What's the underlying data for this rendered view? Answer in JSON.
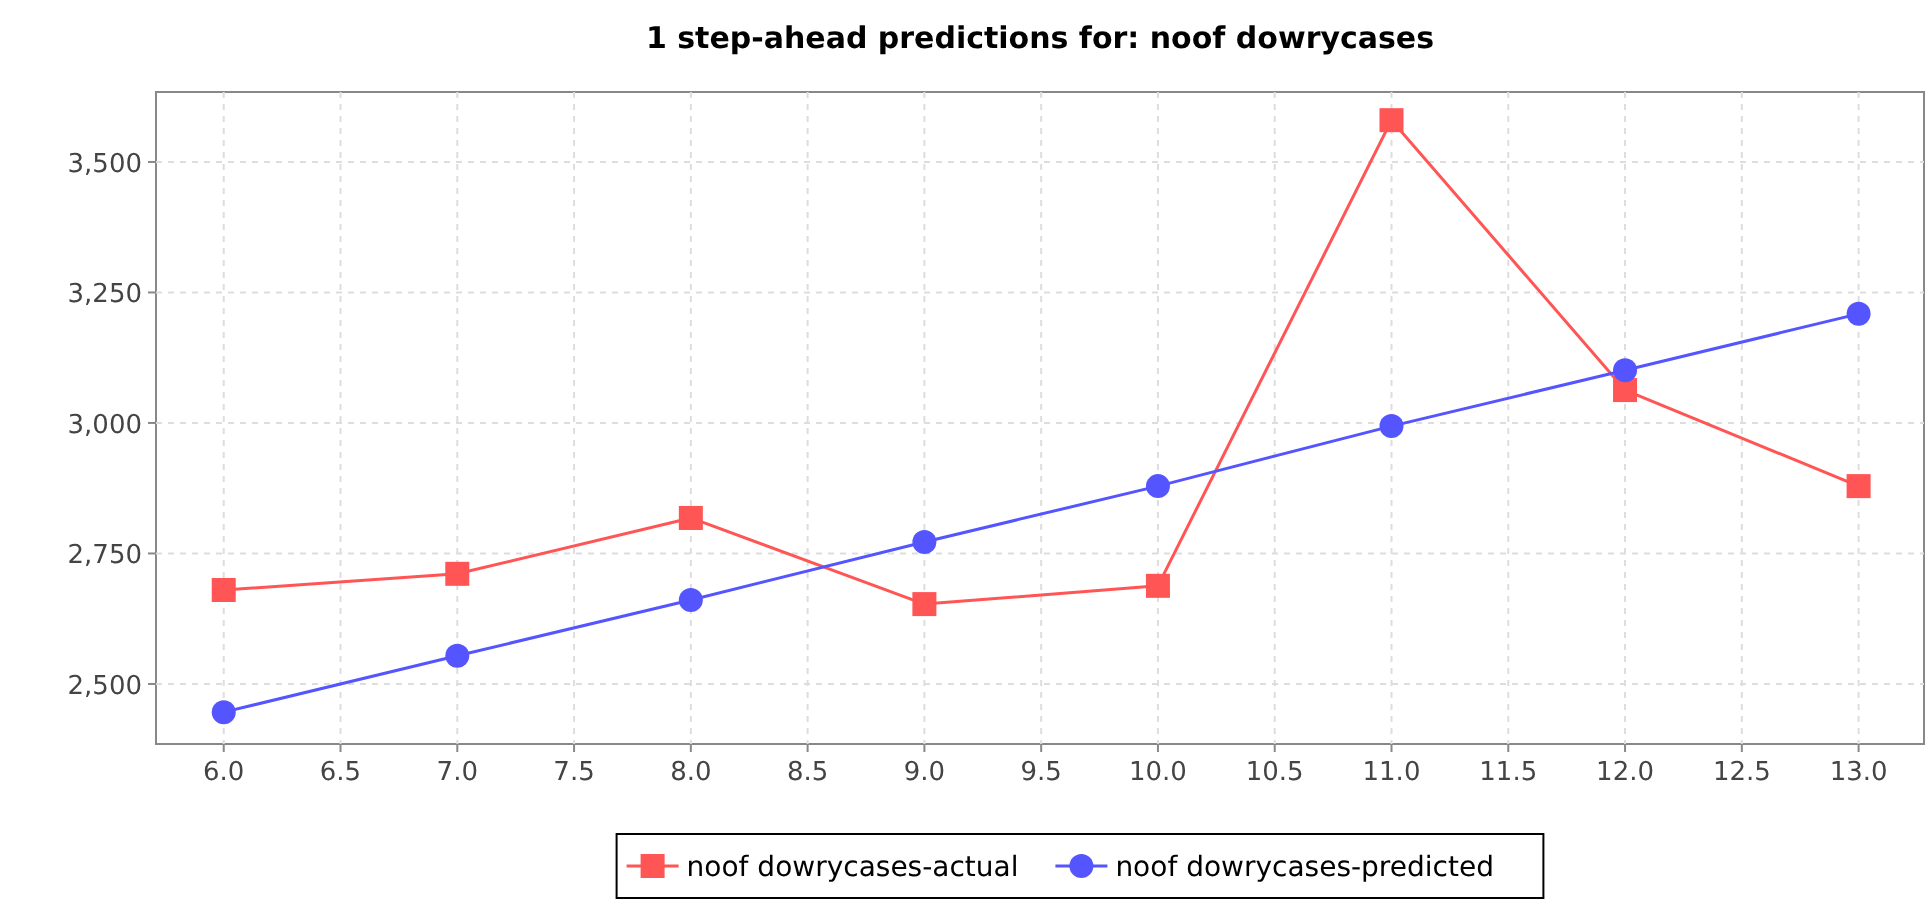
{
  "chart_data": {
    "type": "line",
    "title": "1 step-ahead predictions for: noof dowrycases",
    "x": [
      6,
      7,
      8,
      9,
      10,
      11,
      12,
      13
    ],
    "series": [
      {
        "name": "noof dowrycases-actual",
        "color": "#ff5555",
        "marker": "square",
        "values": [
          2680,
          2711,
          2818,
          2653,
          2688,
          3580,
          3063,
          2879
        ]
      },
      {
        "name": "noof dowrycases-predicted",
        "color": "#5555ff",
        "marker": "circle",
        "values": [
          2446,
          2554,
          2661,
          2772,
          2879,
          2994,
          3101,
          3209
        ]
      }
    ],
    "xlim": [
      5.71,
      13.28
    ],
    "ylim": [
      2385,
      3634
    ],
    "xticks": [
      {
        "value": 6,
        "label": "6.0"
      },
      {
        "value": 6.5,
        "label": "6.5"
      },
      {
        "value": 7,
        "label": "7.0"
      },
      {
        "value": 7.5,
        "label": "7.5"
      },
      {
        "value": 8,
        "label": "8.0"
      },
      {
        "value": 8.5,
        "label": "8.5"
      },
      {
        "value": 9,
        "label": "9.0"
      },
      {
        "value": 9.5,
        "label": "9.5"
      },
      {
        "value": 10,
        "label": "10.0"
      },
      {
        "value": 10.5,
        "label": "10.5"
      },
      {
        "value": 11,
        "label": "11.0"
      },
      {
        "value": 11.5,
        "label": "11.5"
      },
      {
        "value": 12,
        "label": "12.0"
      },
      {
        "value": 12.5,
        "label": "12.5"
      },
      {
        "value": 13,
        "label": "13.0"
      }
    ],
    "yticks": [
      {
        "value": 2500,
        "label": "2,500"
      },
      {
        "value": 2750,
        "label": "2,750"
      },
      {
        "value": 3000,
        "label": "3,000"
      },
      {
        "value": 3250,
        "label": "3,250"
      },
      {
        "value": 3500,
        "label": "3,500"
      }
    ],
    "grid": true,
    "legend": "bottom",
    "line_style": "solid"
  }
}
